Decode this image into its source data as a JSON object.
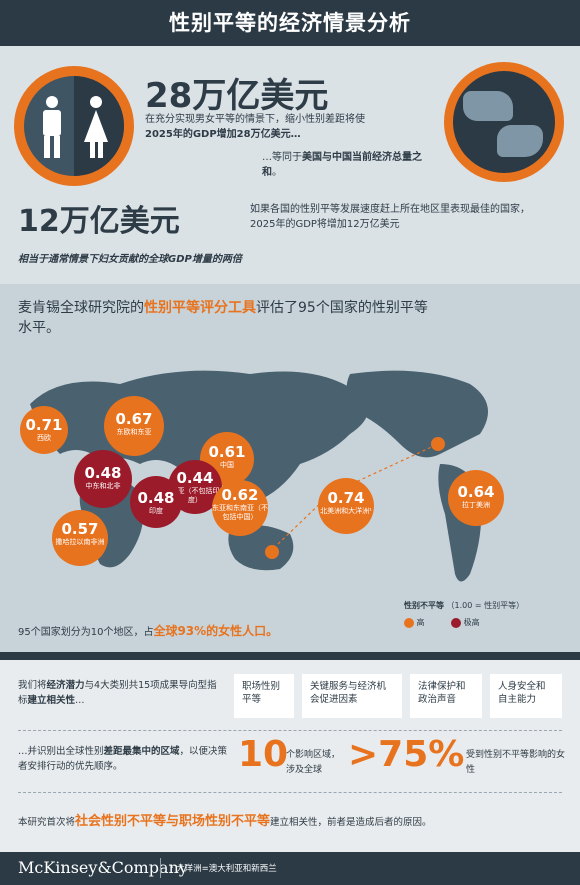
{
  "header": {
    "title": "性别平等的经济情景分析"
  },
  "top": {
    "figure1": "28万亿美元",
    "desc1_a": "在充分实现男女平等的情景下，缩小性别差距将使",
    "desc1_b_bold": "2025年的GDP增加28万亿美元…",
    "desc1_c_a": "…等同于",
    "desc1_c_bold": "美国与中国当前经济总",
    "desc1_c_bold2": "量之和",
    "desc1_c_end": "。",
    "figure2": "12万亿美元",
    "desc2": "如果各国的性别平等发展速度赶上所在地区里表现最佳的国家，2025年的GDP将增加12万亿美元",
    "note_a": "相当于通常情景下妇女贡献的全球GDP增量的",
    "note_b": "两倍"
  },
  "map": {
    "intro_a": "麦肯锡全球研究院的",
    "intro_b": "性别平等评分工具",
    "intro_c": "评估了95个国家的性别平等水平。",
    "regions": [
      {
        "value": "0.71",
        "label": "西欧",
        "color": "#e8731f"
      },
      {
        "value": "0.67",
        "label": "东欧和东亚",
        "color": "#e8731f"
      },
      {
        "value": "0.61",
        "label": "中国",
        "color": "#e8731f"
      },
      {
        "value": "0.48",
        "label": "中东和北非",
        "color": "#9b1b2a"
      },
      {
        "value": "0.44",
        "label": "南亚（不包括印度）",
        "color": "#9b1b2a"
      },
      {
        "value": "0.48",
        "label": "印度",
        "color": "#9b1b2a"
      },
      {
        "value": "0.62",
        "label": "东亚和东南亚（不包括中国）",
        "color": "#e8731f"
      },
      {
        "value": "0.57",
        "label": "撒哈拉以南非洲",
        "color": "#e8731f"
      },
      {
        "value": "0.74",
        "label": "北美洲和大洋洲¹",
        "color": "#e8731f"
      },
      {
        "value": "0.64",
        "label": "拉丁美洲",
        "color": "#e8731f"
      }
    ],
    "bottom_a": "95个国家划分为10个地区，占",
    "bottom_b": "全球93%的女性人口。",
    "legend_title": "性别不平等",
    "legend_sub": "（1.00 = 性别平等）",
    "legend_high": "高",
    "legend_extreme": "极高"
  },
  "analysis": {
    "left_a": "我们将",
    "left_b": "经济潜力",
    "left_c": "与4大类别共15项成果导向型指标",
    "left_d": "建立相关性",
    "left_e": "…",
    "cats": [
      "职场性别平等",
      "关键服务与经济机会促进因素",
      "法律保护和政治声音",
      "人身安全和自主能力"
    ],
    "row2_a": "…并识别出全球性别",
    "row2_b": "差距最集中的区域",
    "row2_c": "，以便决策者安排行动的优先顺序。",
    "ten": "10",
    "ten_desc": "个影响区域，涉及全球",
    "pct": ">75%",
    "pct_desc": "受到性别不平等影响的女性",
    "bottom_a": "本研究首次将",
    "bottom_b": "社会性别不平等与职场性别不平等",
    "bottom_c": "建立相关性，前者是造成后者的原因。"
  },
  "footer": {
    "brand": "McKinsey&Company",
    "note": "¹ 大洋洲=澳大利亚和新西兰"
  },
  "colors": {
    "navy": "#2b3a45",
    "orange": "#e8731f",
    "red": "#9b1b2a"
  }
}
